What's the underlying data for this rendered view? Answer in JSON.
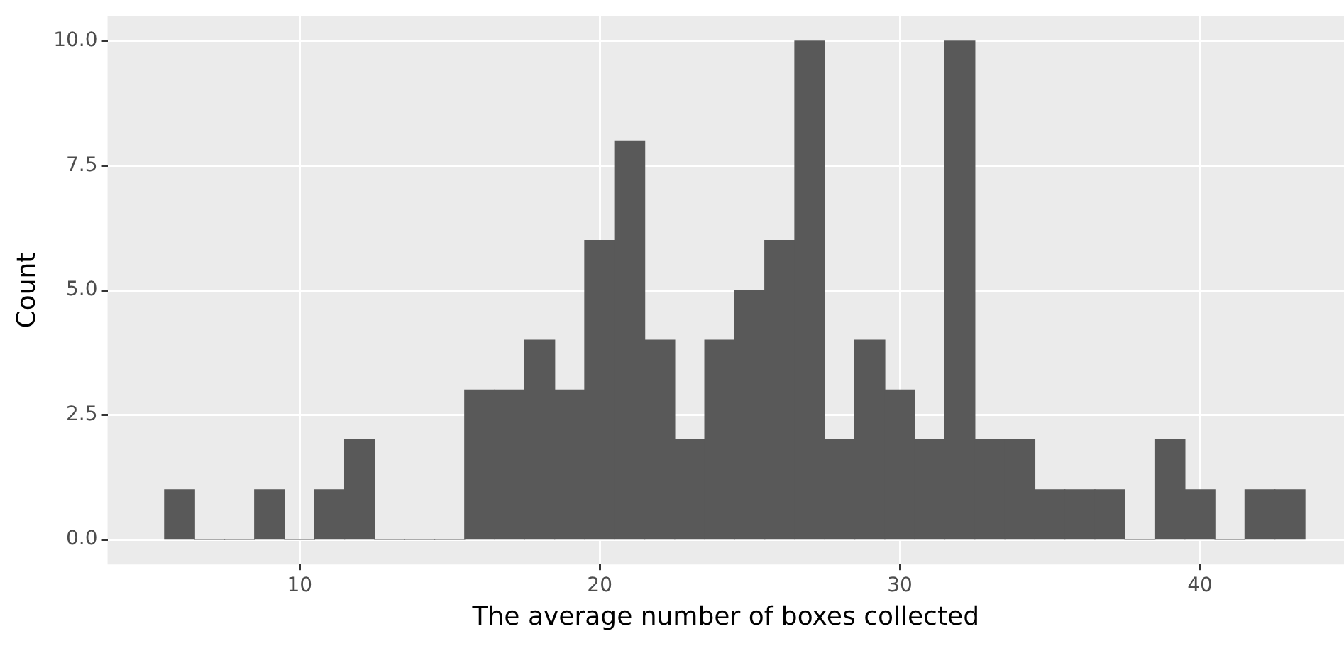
{
  "chart_data": {
    "type": "histogram",
    "xlabel": "The average number of boxes collected",
    "ylabel": "Count",
    "bins": [
      5.5,
      6.5,
      7.5,
      8.5,
      9.5,
      10.5,
      11.5,
      12.5,
      13.5,
      14.5,
      15.5,
      16.5,
      17.5,
      18.5,
      19.5,
      20.5,
      21.5,
      22.5,
      23.5,
      24.5,
      25.5,
      26.5,
      27.5,
      28.5,
      29.5,
      30.5,
      31.5,
      32.5,
      33.5,
      34.5,
      35.5,
      36.5,
      37.5,
      38.5,
      39.5,
      40.5,
      41.5,
      42.5,
      43.5
    ],
    "values": [
      1,
      0,
      0,
      1,
      0,
      1,
      2,
      0,
      0,
      0,
      3,
      3,
      4,
      3,
      6,
      8,
      4,
      2,
      4,
      5,
      6,
      10,
      2,
      4,
      3,
      2,
      10,
      2,
      2,
      1,
      1,
      1,
      0,
      2,
      1,
      0,
      1,
      1
    ],
    "color": "#595959",
    "xlim": [
      3.6,
      44.8
    ],
    "xticks": [
      10,
      20,
      30,
      40
    ],
    "ylim": [
      -0.5,
      10.5
    ],
    "yticks": [
      {
        "value": 0,
        "label": "0.0"
      },
      {
        "value": 2.5,
        "label": "2.5"
      },
      {
        "value": 5,
        "label": "5.0"
      },
      {
        "value": 7.5,
        "label": "7.5"
      },
      {
        "value": 10,
        "label": "10.0"
      }
    ],
    "grid": true
  }
}
